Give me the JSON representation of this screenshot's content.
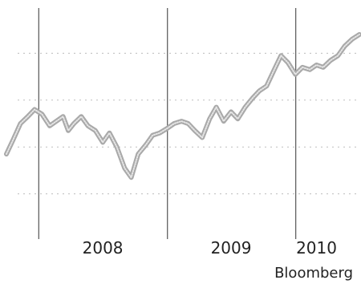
{
  "chart_data": {
    "type": "line",
    "title": "",
    "xlabel": "",
    "ylabel": "",
    "x_tick_labels": [
      "2008",
      "2009",
      "2010"
    ],
    "x_tick_dates": [
      "2008-07-01",
      "2009-07-01",
      "2010-03-01"
    ],
    "year_boundaries": [
      "2008-01-01",
      "2009-01-01",
      "2010-01-01"
    ],
    "xlim": [
      "2007-10-01",
      "2010-07-01"
    ],
    "ylim": [
      0,
      100
    ],
    "y_axis_labels_shown": false,
    "grid": "vertical lines at year boundaries, faint dotted horizontal lines",
    "legend": "none",
    "source": "Bloomberg",
    "colors": {
      "series": "#a9a9a9",
      "text": "#222222",
      "grid": "#555555"
    },
    "series": [
      {
        "x": [
          "2007-10-01",
          "2007-10-20",
          "2007-11-10",
          "2007-12-01",
          "2007-12-20",
          "2008-01-10",
          "2008-02-01",
          "2008-02-20",
          "2008-03-10",
          "2008-03-25",
          "2008-04-10",
          "2008-05-01",
          "2008-05-20",
          "2008-06-10",
          "2008-07-01",
          "2008-07-20",
          "2008-08-10",
          "2008-09-01",
          "2008-09-20",
          "2008-10-10",
          "2008-11-01",
          "2008-11-20",
          "2008-12-10",
          "2009-01-01",
          "2009-01-20",
          "2009-02-10",
          "2009-03-01",
          "2009-03-20",
          "2009-04-10",
          "2009-05-01",
          "2009-05-20",
          "2009-06-10",
          "2009-07-01",
          "2009-07-20",
          "2009-08-10",
          "2009-09-01",
          "2009-09-20",
          "2009-10-10",
          "2009-11-01",
          "2009-11-20",
          "2009-12-10",
          "2009-12-31",
          "2010-01-20",
          "2010-02-10",
          "2010-03-01",
          "2010-03-20",
          "2010-04-10",
          "2010-05-01",
          "2010-05-20",
          "2010-06-10",
          "2010-07-01"
        ],
        "y": [
          37,
          43,
          50,
          53,
          56,
          54,
          49,
          51,
          53,
          47,
          50,
          53,
          49,
          47,
          42,
          46,
          40,
          31,
          27,
          37,
          41,
          45,
          46,
          48,
          50,
          51,
          50,
          47,
          44,
          52,
          57,
          51,
          55,
          52,
          57,
          61,
          64,
          66,
          73,
          79,
          76,
          71,
          74,
          73,
          75,
          74,
          77,
          79,
          83,
          86,
          88
        ]
      }
    ]
  }
}
